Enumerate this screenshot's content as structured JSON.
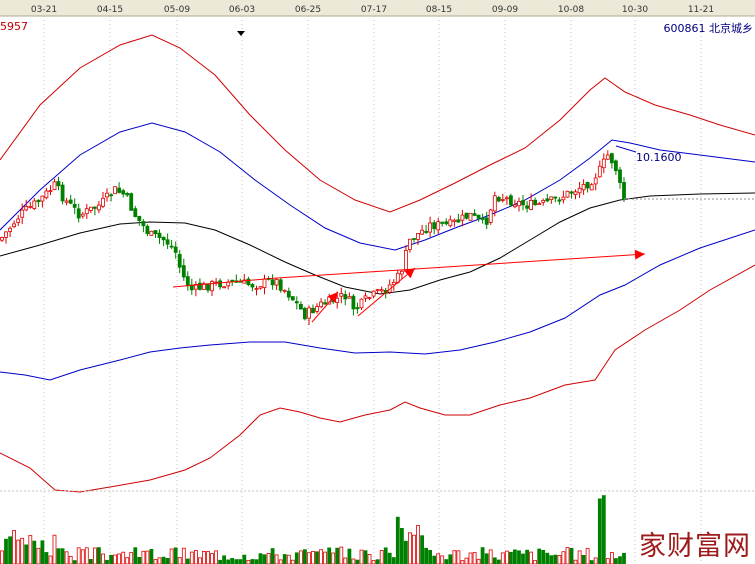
{
  "header": {
    "left_code": "5957",
    "stock_code": "600861",
    "stock_name": "北京城乡",
    "last_price": "10.1600"
  },
  "watermark": "家财富网",
  "colors": {
    "background": "#ffffff",
    "date_bar": "#ece9d8",
    "grid": "#c0c0c0",
    "up": "#e00000",
    "down": "#008000",
    "band_outer": "#d00000",
    "band_inner": "#0000c8",
    "mid": "#000000",
    "trend_arrow": "#ff0000",
    "label_red": "#c00000",
    "label_blue": "#00007f",
    "watermark": "#9e1a1a"
  },
  "chart_data": {
    "type": "candlestick",
    "x_ticks": [
      "03-21",
      "04-15",
      "05-09",
      "06-03",
      "06-25",
      "07-17",
      "08-15",
      "09-09",
      "10-08",
      "10-30",
      "11-21"
    ],
    "y_range": [
      7.2,
      12.2
    ],
    "last_close": 10.16,
    "legend": "none",
    "grid": "vertical dotted at date ticks",
    "candle_count": 155,
    "volume_range": [
      0,
      100
    ]
  }
}
